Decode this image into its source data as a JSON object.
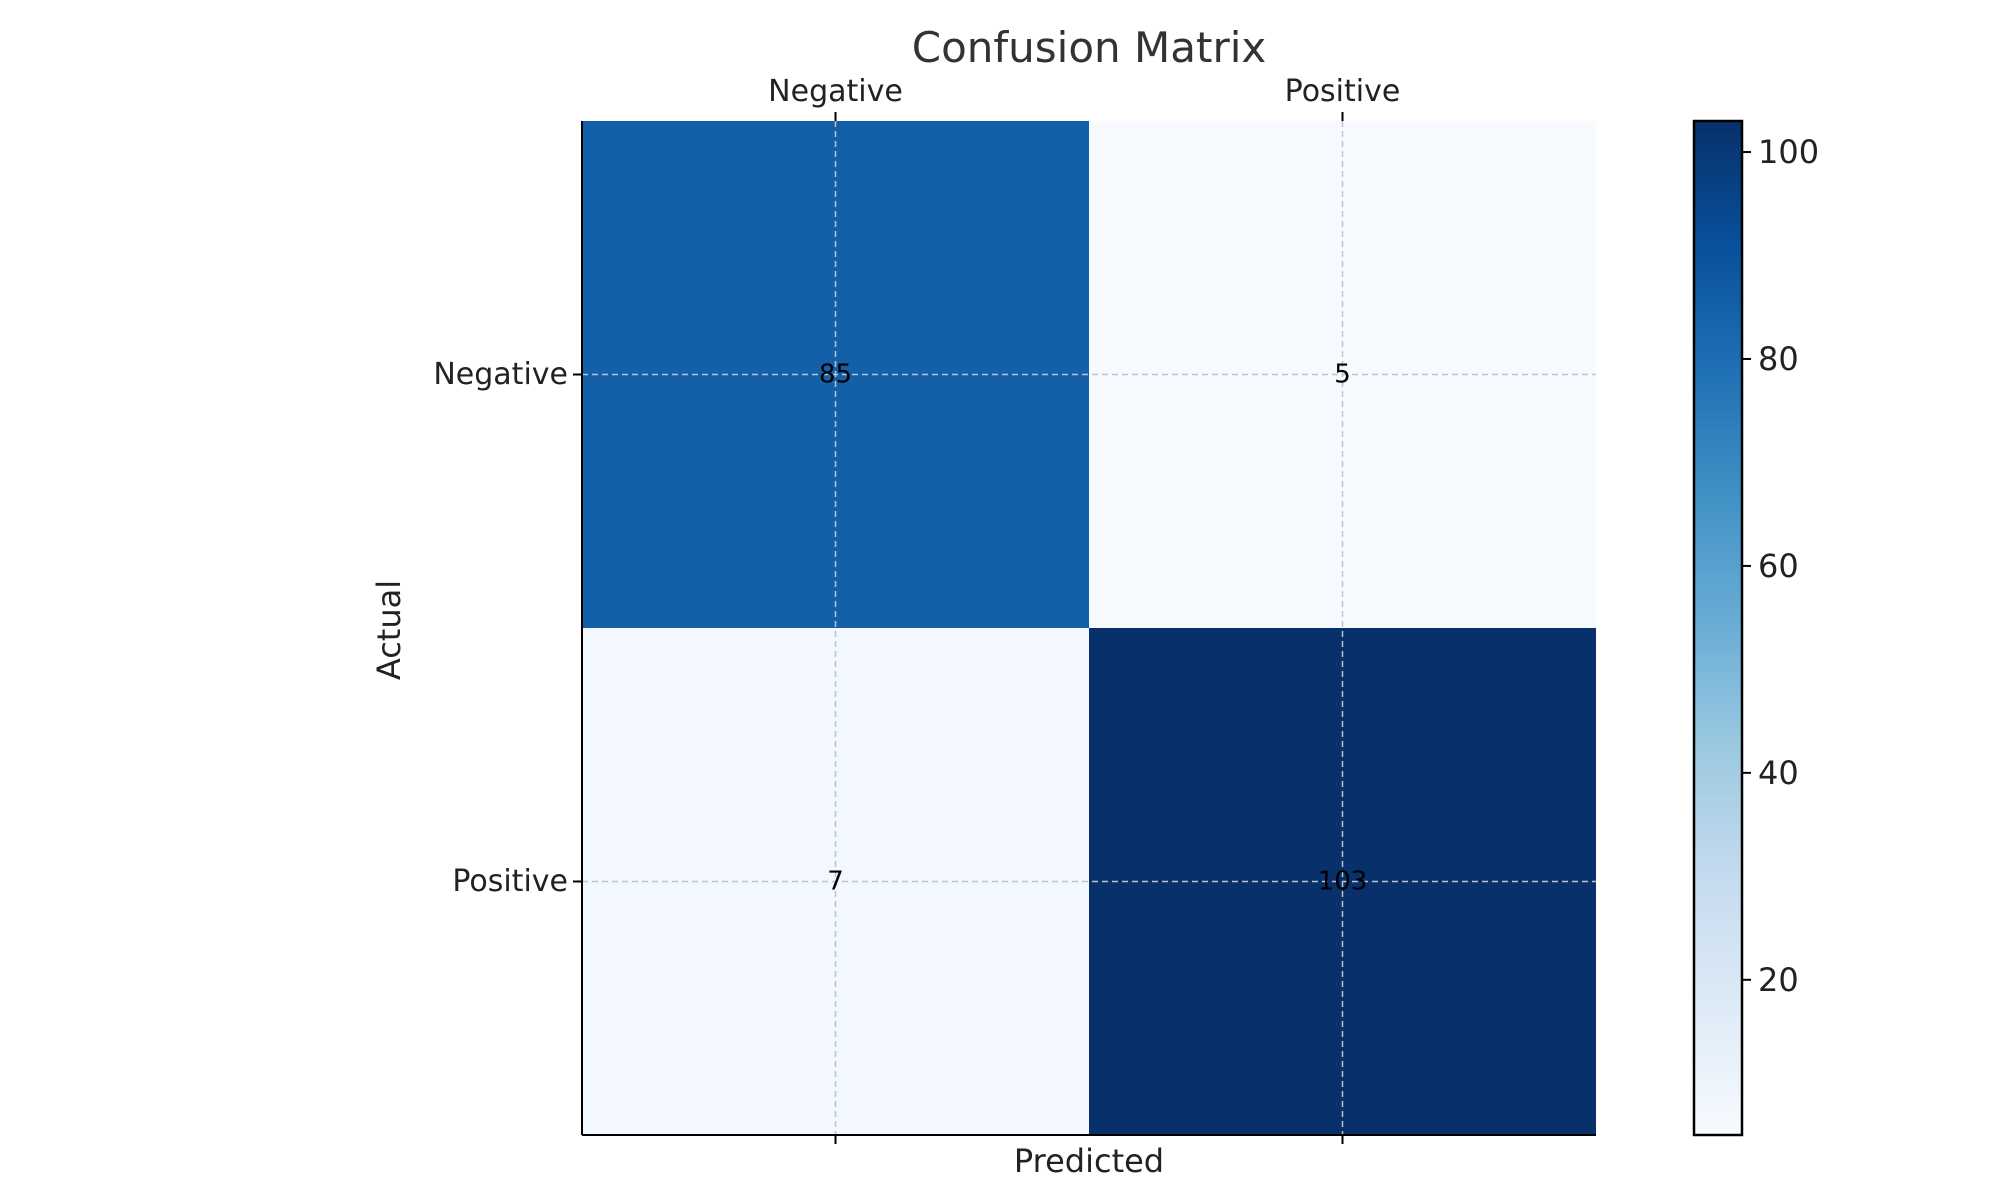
{
  "chart_data": {
    "type": "heatmap",
    "title": "Confusion Matrix",
    "xlabel": "Predicted",
    "ylabel": "Actual",
    "x_categories": [
      "Negative",
      "Positive"
    ],
    "y_categories": [
      "Negative",
      "Positive"
    ],
    "values": [
      [
        85,
        5
      ],
      [
        7,
        103
      ]
    ],
    "colormap": "Blues",
    "color_range": [
      5,
      103
    ],
    "colorbar_ticks": [
      20,
      40,
      60,
      80,
      100
    ],
    "grid": true,
    "x_ticks_position": "top"
  }
}
